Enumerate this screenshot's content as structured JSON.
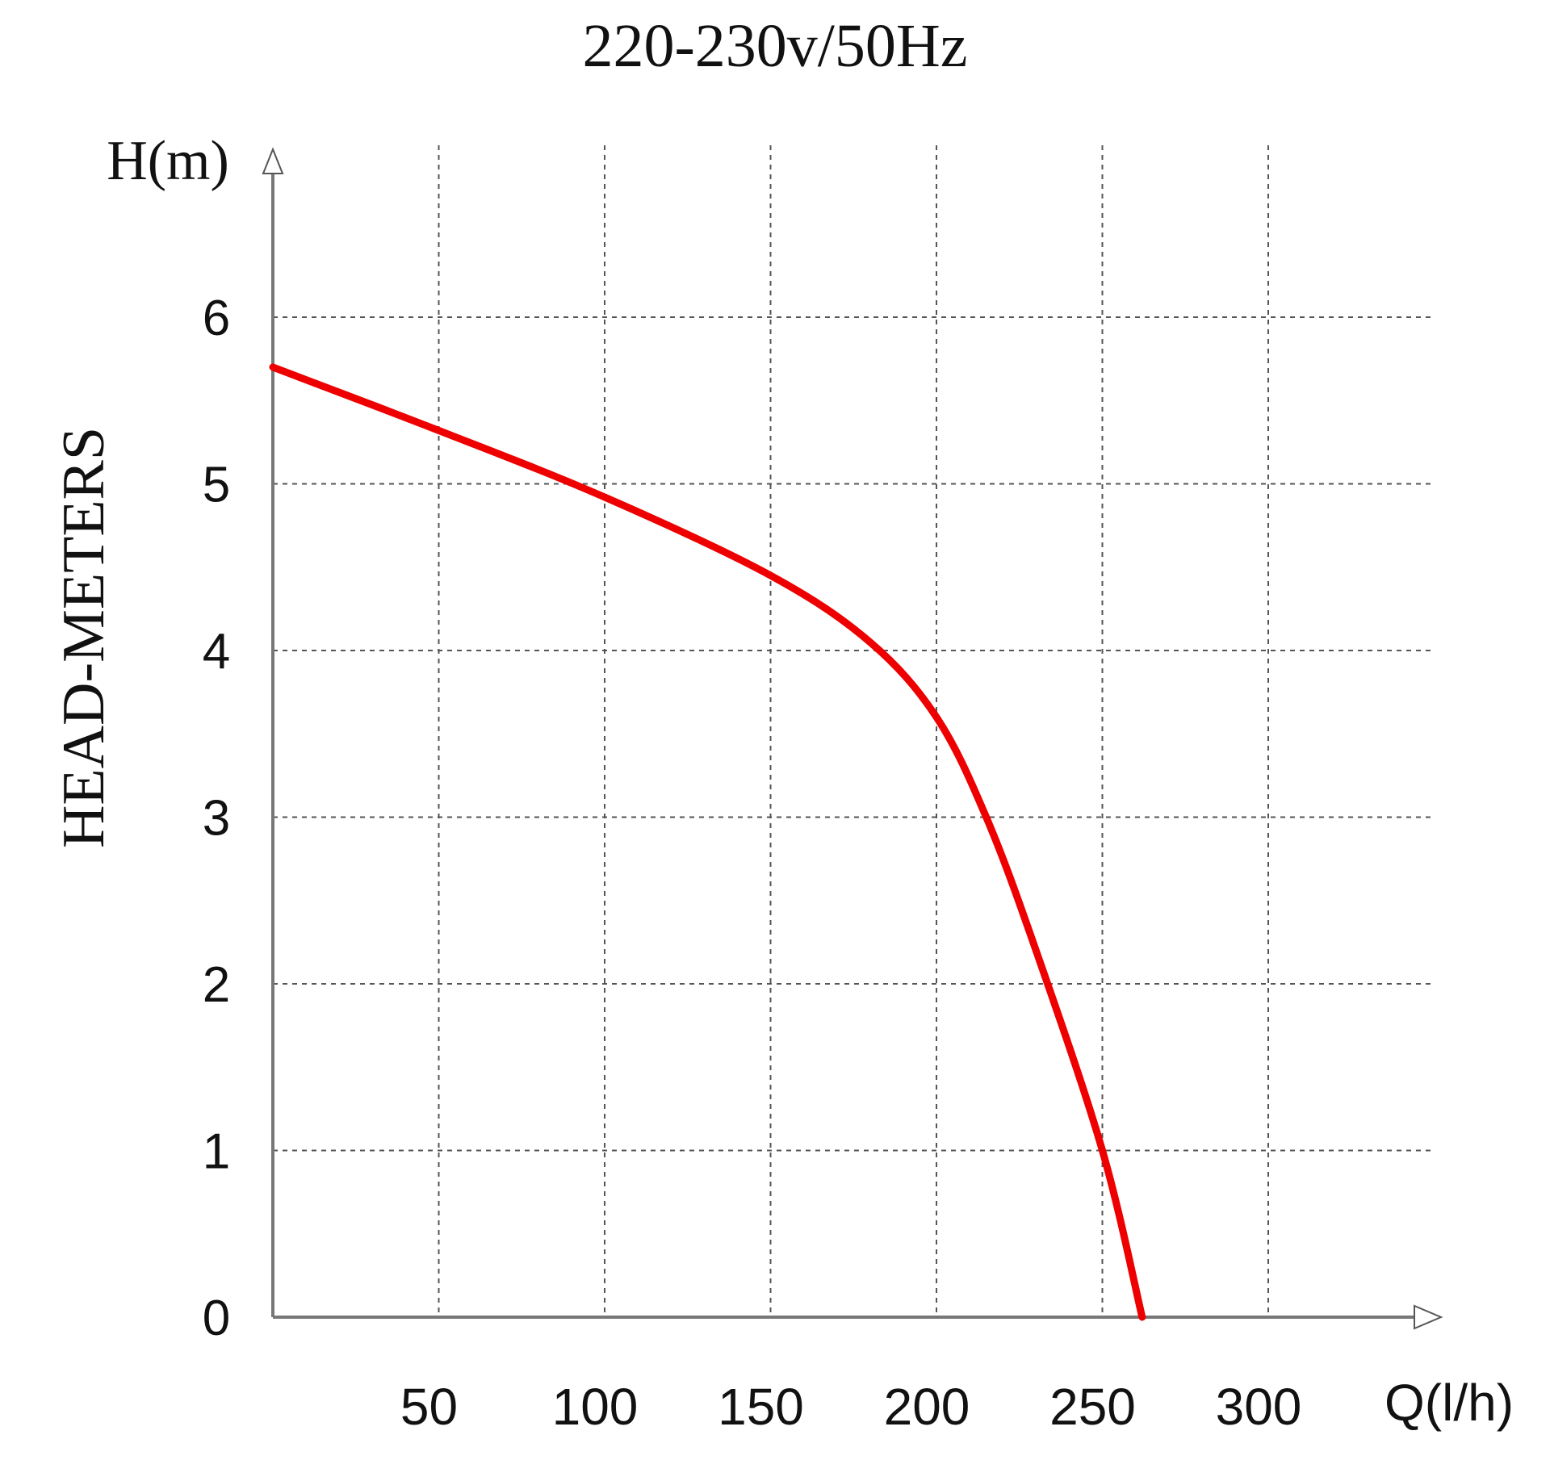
{
  "chart_data": {
    "type": "line",
    "title": "220-230v/50Hz",
    "ylabel": "HEAD-METERS",
    "y_axis_unit_label": "H(m)",
    "x_axis_unit_label": "Q(l/h)",
    "xlim": [
      0,
      350
    ],
    "ylim": [
      0,
      7
    ],
    "x_ticks": [
      50,
      100,
      150,
      200,
      250,
      300
    ],
    "y_ticks": [
      0,
      1,
      2,
      3,
      4,
      5,
      6
    ],
    "grid": true,
    "series": [
      {
        "color": "#ee0000",
        "points": [
          [
            0,
            5.7
          ],
          [
            50,
            5.32
          ],
          [
            100,
            4.92
          ],
          [
            150,
            4.45
          ],
          [
            180,
            4.05
          ],
          [
            200,
            3.6
          ],
          [
            215,
            3.0
          ],
          [
            230,
            2.2
          ],
          [
            250,
            1.0
          ],
          [
            262,
            0.0
          ]
        ]
      }
    ]
  }
}
